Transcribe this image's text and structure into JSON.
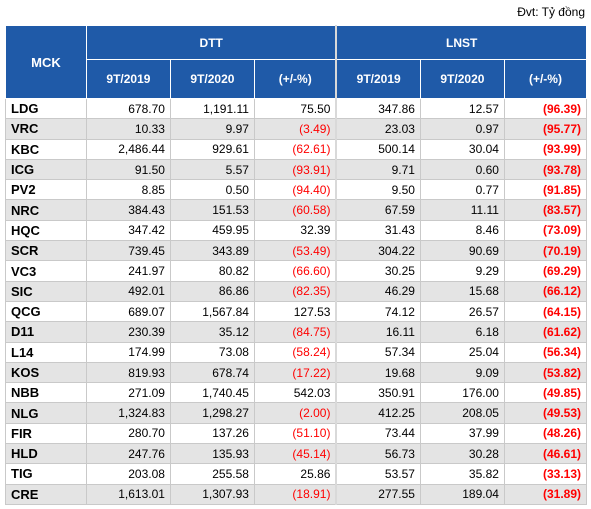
{
  "unit_note": "Đvt: Tỷ đồng",
  "headers": {
    "mck": "MCK",
    "dtt": "DTT",
    "lnst": "LNST",
    "sub": [
      "9T/2019",
      "9T/2020",
      "(+/-%)",
      "9T/2019",
      "9T/2020",
      "(+/-%)"
    ]
  },
  "rows": [
    {
      "mck": "LDG",
      "d19": "678.70",
      "d20": "1,191.11",
      "dp": "75.50",
      "dp_neg": false,
      "l19": "347.86",
      "l20": "12.57",
      "lp": "(96.39)"
    },
    {
      "mck": "VRC",
      "d19": "10.33",
      "d20": "9.97",
      "dp": "(3.49)",
      "dp_neg": true,
      "l19": "23.03",
      "l20": "0.97",
      "lp": "(95.77)"
    },
    {
      "mck": "KBC",
      "d19": "2,486.44",
      "d20": "929.61",
      "dp": "(62.61)",
      "dp_neg": true,
      "l19": "500.14",
      "l20": "30.04",
      "lp": "(93.99)"
    },
    {
      "mck": "ICG",
      "d19": "91.50",
      "d20": "5.57",
      "dp": "(93.91)",
      "dp_neg": true,
      "l19": "9.71",
      "l20": "0.60",
      "lp": "(93.78)"
    },
    {
      "mck": "PV2",
      "d19": "8.85",
      "d20": "0.50",
      "dp": "(94.40)",
      "dp_neg": true,
      "l19": "9.50",
      "l20": "0.77",
      "lp": "(91.85)"
    },
    {
      "mck": "NRC",
      "d19": "384.43",
      "d20": "151.53",
      "dp": "(60.58)",
      "dp_neg": true,
      "l19": "67.59",
      "l20": "11.11",
      "lp": "(83.57)"
    },
    {
      "mck": "HQC",
      "d19": "347.42",
      "d20": "459.95",
      "dp": "32.39",
      "dp_neg": false,
      "l19": "31.43",
      "l20": "8.46",
      "lp": "(73.09)"
    },
    {
      "mck": "SCR",
      "d19": "739.45",
      "d20": "343.89",
      "dp": "(53.49)",
      "dp_neg": true,
      "l19": "304.22",
      "l20": "90.69",
      "lp": "(70.19)"
    },
    {
      "mck": "VC3",
      "d19": "241.97",
      "d20": "80.82",
      "dp": "(66.60)",
      "dp_neg": true,
      "l19": "30.25",
      "l20": "9.29",
      "lp": "(69.29)"
    },
    {
      "mck": "SIC",
      "d19": "492.01",
      "d20": "86.86",
      "dp": "(82.35)",
      "dp_neg": true,
      "l19": "46.29",
      "l20": "15.68",
      "lp": "(66.12)"
    },
    {
      "mck": "QCG",
      "d19": "689.07",
      "d20": "1,567.84",
      "dp": "127.53",
      "dp_neg": false,
      "l19": "74.12",
      "l20": "26.57",
      "lp": "(64.15)"
    },
    {
      "mck": "D11",
      "d19": "230.39",
      "d20": "35.12",
      "dp": "(84.75)",
      "dp_neg": true,
      "l19": "16.11",
      "l20": "6.18",
      "lp": "(61.62)"
    },
    {
      "mck": "L14",
      "d19": "174.99",
      "d20": "73.08",
      "dp": "(58.24)",
      "dp_neg": true,
      "l19": "57.34",
      "l20": "25.04",
      "lp": "(56.34)"
    },
    {
      "mck": "KOS",
      "d19": "819.93",
      "d20": "678.74",
      "dp": "(17.22)",
      "dp_neg": true,
      "l19": "19.68",
      "l20": "9.09",
      "lp": "(53.82)"
    },
    {
      "mck": "NBB",
      "d19": "271.09",
      "d20": "1,740.45",
      "dp": "542.03",
      "dp_neg": false,
      "l19": "350.91",
      "l20": "176.00",
      "lp": "(49.85)"
    },
    {
      "mck": "NLG",
      "d19": "1,324.83",
      "d20": "1,298.27",
      "dp": "(2.00)",
      "dp_neg": true,
      "l19": "412.25",
      "l20": "208.05",
      "lp": "(49.53)"
    },
    {
      "mck": "FIR",
      "d19": "280.70",
      "d20": "137.26",
      "dp": "(51.10)",
      "dp_neg": true,
      "l19": "73.44",
      "l20": "37.99",
      "lp": "(48.26)"
    },
    {
      "mck": "HLD",
      "d19": "247.76",
      "d20": "135.93",
      "dp": "(45.14)",
      "dp_neg": true,
      "l19": "56.73",
      "l20": "30.28",
      "lp": "(46.61)"
    },
    {
      "mck": "TIG",
      "d19": "203.08",
      "d20": "255.58",
      "dp": "25.86",
      "dp_neg": false,
      "l19": "53.57",
      "l20": "35.82",
      "lp": "(33.13)"
    },
    {
      "mck": "CRE",
      "d19": "1,613.01",
      "d20": "1,307.93",
      "dp": "(18.91)",
      "dp_neg": true,
      "l19": "277.55",
      "l20": "189.04",
      "lp": "(31.89)"
    }
  ],
  "colors": {
    "header_bg": "#1f5aa8",
    "negative": "#ff0000",
    "stripe": "#e4e4e4"
  }
}
